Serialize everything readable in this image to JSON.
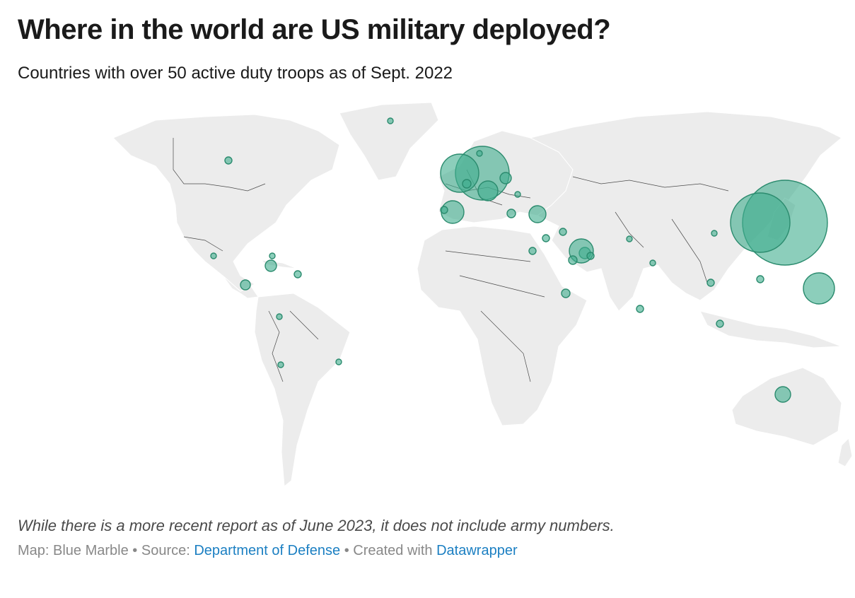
{
  "title": "Where in the world are US military deployed?",
  "subtitle": "Countries with over 50 active duty troops as of Sept. 2022",
  "note": "While there is a more recent report as of June 2023, it does not include army numbers.",
  "credits": {
    "map_label": "Map: Blue Marble",
    "separator": " • ",
    "source_prefix": "Source: ",
    "source_link": "Department of Defense",
    "created_prefix": "Created with ",
    "created_link": "Datawrapper"
  },
  "colors": {
    "bubble_fill": "#3fad8e",
    "land": "#ececec",
    "border": "#4a4a4a",
    "link": "#1b7fc2"
  }
}
